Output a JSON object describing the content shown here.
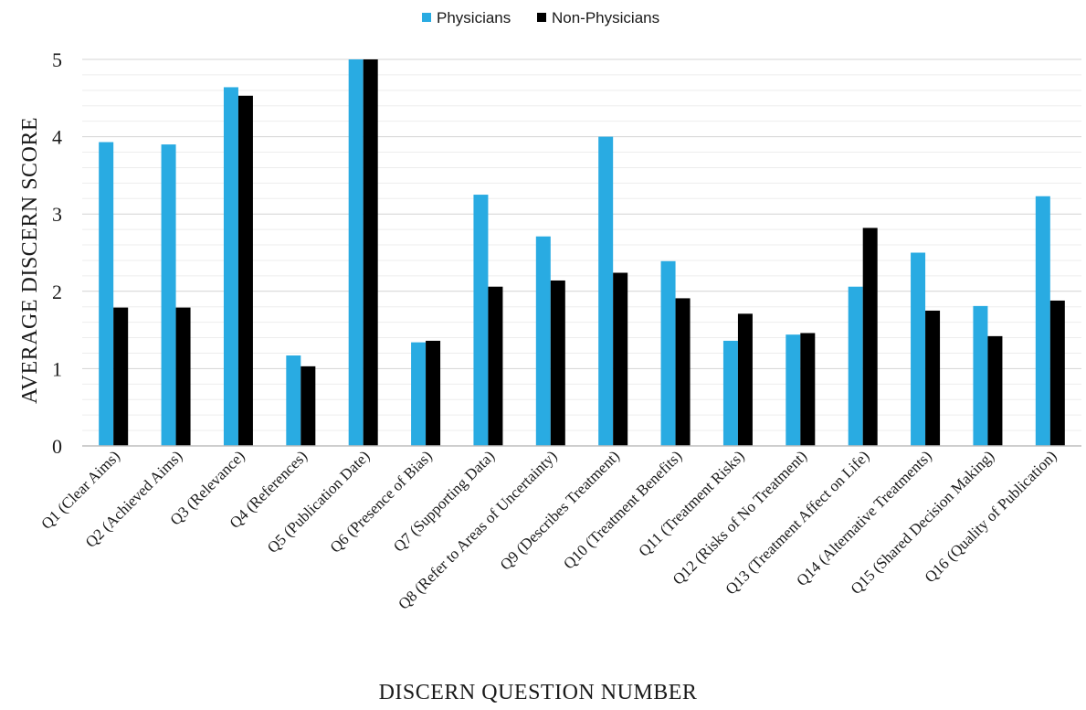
{
  "chart_data": {
    "type": "bar",
    "xlabel": "DISCERN QUESTION NUMBER",
    "ylabel": "AVERAGE DISCERN SCORE",
    "ylim": [
      0,
      5
    ],
    "yticks": [
      "0",
      "1",
      "2",
      "3",
      "4",
      "5"
    ],
    "grid": true,
    "legend_position": "top-center",
    "categories": [
      "Q1 (Clear Aims)",
      "Q2 (Achieved Aims)",
      "Q3 (Relevance)",
      "Q4 (References)",
      "Q5 (Publication Date)",
      "Q6 (Presence of Bias)",
      "Q7 (Supporting Data)",
      "Q8 (Refer to Areas of Uncertainty)",
      "Q9 (Describes Treatment)",
      "Q10 (Treatment Benefits)",
      "Q11 (Treatment Risks)",
      "Q12 (Risks of No Treatment)",
      "Q13 (Treatment Affect on Life)",
      "Q14 (Alternative Treatments)",
      "Q15 (Shared Decision Making)",
      "Q16 (Quality of Publication)"
    ],
    "series": [
      {
        "name": "Physicians",
        "color": "#29abe2",
        "values": [
          3.93,
          3.9,
          4.64,
          1.17,
          5.0,
          1.34,
          3.25,
          2.71,
          4.0,
          2.39,
          1.36,
          1.44,
          2.06,
          2.5,
          1.81,
          3.23
        ]
      },
      {
        "name": "Non-Physicians",
        "color": "#000000",
        "values": [
          1.79,
          1.79,
          4.53,
          1.03,
          5.0,
          1.36,
          2.06,
          2.14,
          2.24,
          1.91,
          1.71,
          1.46,
          2.82,
          1.75,
          1.42,
          1.88
        ]
      }
    ]
  }
}
